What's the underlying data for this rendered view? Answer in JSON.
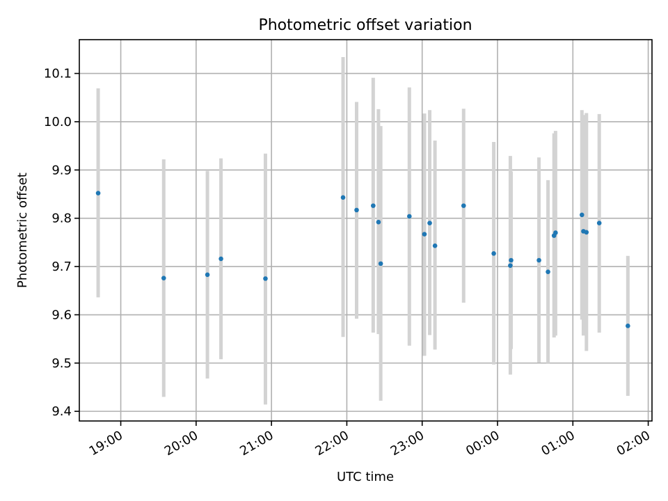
{
  "chart_data": {
    "type": "scatter",
    "title": "Photometric offset variation",
    "xlabel": "UTC time",
    "ylabel": "Photometric offset",
    "x_unit": "hours (UTC, continuing past midnight)",
    "xlim": [
      18.45,
      26.05
    ],
    "ylim": [
      9.38,
      10.17
    ],
    "x_ticks": [
      {
        "value": 19,
        "label": "19:00"
      },
      {
        "value": 20,
        "label": "20:00"
      },
      {
        "value": 21,
        "label": "21:00"
      },
      {
        "value": 22,
        "label": "22:00"
      },
      {
        "value": 23,
        "label": "23:00"
      },
      {
        "value": 24,
        "label": "00:00"
      },
      {
        "value": 25,
        "label": "01:00"
      },
      {
        "value": 26,
        "label": "02:00"
      }
    ],
    "y_ticks": [
      {
        "value": 9.4,
        "label": "9.4"
      },
      {
        "value": 9.5,
        "label": "9.5"
      },
      {
        "value": 9.6,
        "label": "9.6"
      },
      {
        "value": 9.7,
        "label": "9.7"
      },
      {
        "value": 9.8,
        "label": "9.8"
      },
      {
        "value": 9.9,
        "label": "9.9"
      },
      {
        "value": 10.0,
        "label": "10.0"
      },
      {
        "value": 10.1,
        "label": "10.1"
      }
    ],
    "grid": true,
    "colors": {
      "point": "#1f77b4",
      "errorbar": "#d3d3d3"
    },
    "points": [
      {
        "x": 18.7,
        "y": 9.852,
        "ylo": 9.636,
        "yhi": 10.069
      },
      {
        "x": 19.57,
        "y": 9.676,
        "ylo": 9.43,
        "yhi": 9.922
      },
      {
        "x": 20.15,
        "y": 9.683,
        "ylo": 9.468,
        "yhi": 9.898
      },
      {
        "x": 20.33,
        "y": 9.716,
        "ylo": 9.508,
        "yhi": 9.924
      },
      {
        "x": 20.92,
        "y": 9.675,
        "ylo": 9.414,
        "yhi": 9.934
      },
      {
        "x": 21.95,
        "y": 9.843,
        "ylo": 9.554,
        "yhi": 10.134
      },
      {
        "x": 22.13,
        "y": 9.817,
        "ylo": 9.592,
        "yhi": 10.041
      },
      {
        "x": 22.35,
        "y": 9.826,
        "ylo": 9.563,
        "yhi": 10.091
      },
      {
        "x": 22.42,
        "y": 9.792,
        "ylo": 9.56,
        "yhi": 10.026
      },
      {
        "x": 22.45,
        "y": 9.706,
        "ylo": 9.422,
        "yhi": 9.991
      },
      {
        "x": 22.83,
        "y": 9.804,
        "ylo": 9.536,
        "yhi": 10.071
      },
      {
        "x": 23.03,
        "y": 9.767,
        "ylo": 9.515,
        "yhi": 10.017
      },
      {
        "x": 23.1,
        "y": 9.79,
        "ylo": 9.558,
        "yhi": 10.024
      },
      {
        "x": 23.17,
        "y": 9.743,
        "ylo": 9.528,
        "yhi": 9.961
      },
      {
        "x": 23.55,
        "y": 9.826,
        "ylo": 9.625,
        "yhi": 10.027
      },
      {
        "x": 23.95,
        "y": 9.727,
        "ylo": 9.497,
        "yhi": 9.958
      },
      {
        "x": 24.17,
        "y": 9.702,
        "ylo": 9.476,
        "yhi": 9.929
      },
      {
        "x": 24.18,
        "y": 9.713,
        "ylo": 9.529,
        "yhi": 9.897
      },
      {
        "x": 24.55,
        "y": 9.713,
        "ylo": 9.501,
        "yhi": 9.926
      },
      {
        "x": 24.67,
        "y": 9.689,
        "ylo": 9.5,
        "yhi": 9.879
      },
      {
        "x": 24.75,
        "y": 9.764,
        "ylo": 9.553,
        "yhi": 9.976
      },
      {
        "x": 24.77,
        "y": 9.77,
        "ylo": 9.557,
        "yhi": 9.981
      },
      {
        "x": 25.12,
        "y": 9.807,
        "ylo": 9.59,
        "yhi": 10.024
      },
      {
        "x": 25.14,
        "y": 9.773,
        "ylo": 9.557,
        "yhi": 10.014
      },
      {
        "x": 25.18,
        "y": 9.771,
        "ylo": 9.525,
        "yhi": 10.018
      },
      {
        "x": 25.35,
        "y": 9.79,
        "ylo": 9.563,
        "yhi": 10.016
      },
      {
        "x": 25.73,
        "y": 9.577,
        "ylo": 9.432,
        "yhi": 9.722
      }
    ]
  }
}
